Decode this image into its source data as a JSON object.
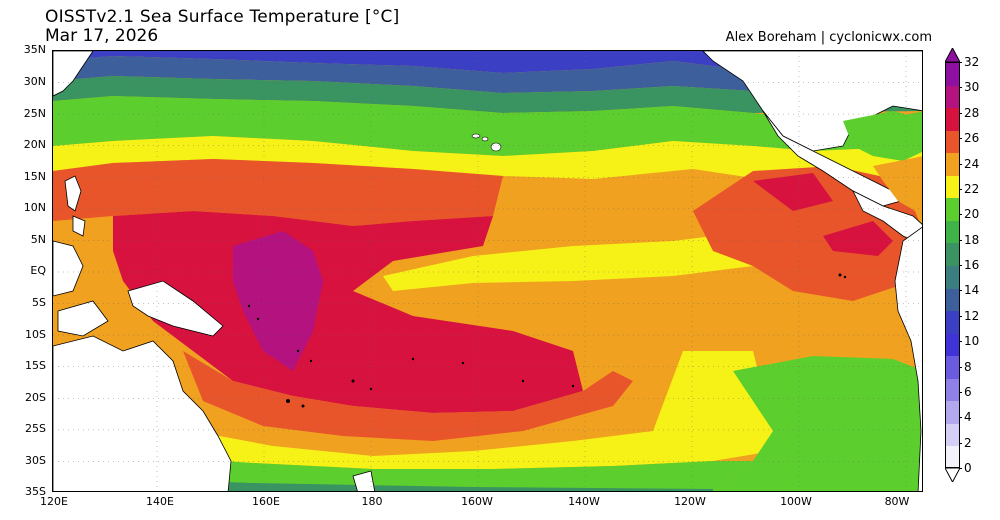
{
  "header": {
    "title": "OISSTv2.1 Sea Surface Temperature [°C]",
    "date": "Mar 17, 2026",
    "credit": "Alex Boreham | cyclonicwx.com"
  },
  "axes": {
    "lat_labels": [
      "35N",
      "30N",
      "25N",
      "20N",
      "15N",
      "10N",
      "5N",
      "EQ",
      "5S",
      "10S",
      "15S",
      "20S",
      "25S",
      "30S",
      "35S"
    ],
    "lon_labels": [
      "120E",
      "140E",
      "160E",
      "180",
      "160W",
      "140W",
      "120W",
      "100W",
      "80W"
    ]
  },
  "colorbar": {
    "labels": [
      "32",
      "30",
      "28",
      "26",
      "24",
      "22",
      "20",
      "18",
      "16",
      "14",
      "12",
      "10",
      "8",
      "6",
      "4",
      "2",
      "0"
    ],
    "colors": [
      "#8e0fa0",
      "#b3127f",
      "#d8123f",
      "#e8552a",
      "#f0a11f",
      "#f6f217",
      "#5ccf2e",
      "#3fb248",
      "#3a9461",
      "#3a7e80",
      "#3d5f9c",
      "#3b3fc4",
      "#3f33d8",
      "#6a5be0",
      "#8f80e6",
      "#b3a8ee",
      "#d5cff6",
      "#f3f2fb"
    ]
  },
  "map_colors": {
    "land": "#ffffff",
    "warm_pool": "#b3127f",
    "very_warm": "#d8123f",
    "warm": "#e8552a",
    "mild": "#f0a11f",
    "yellow": "#f6f217",
    "green": "#5ccf2e",
    "teal": "#3a9461",
    "blue": "#3d5f9c",
    "coldest": "#3b3fc4"
  }
}
